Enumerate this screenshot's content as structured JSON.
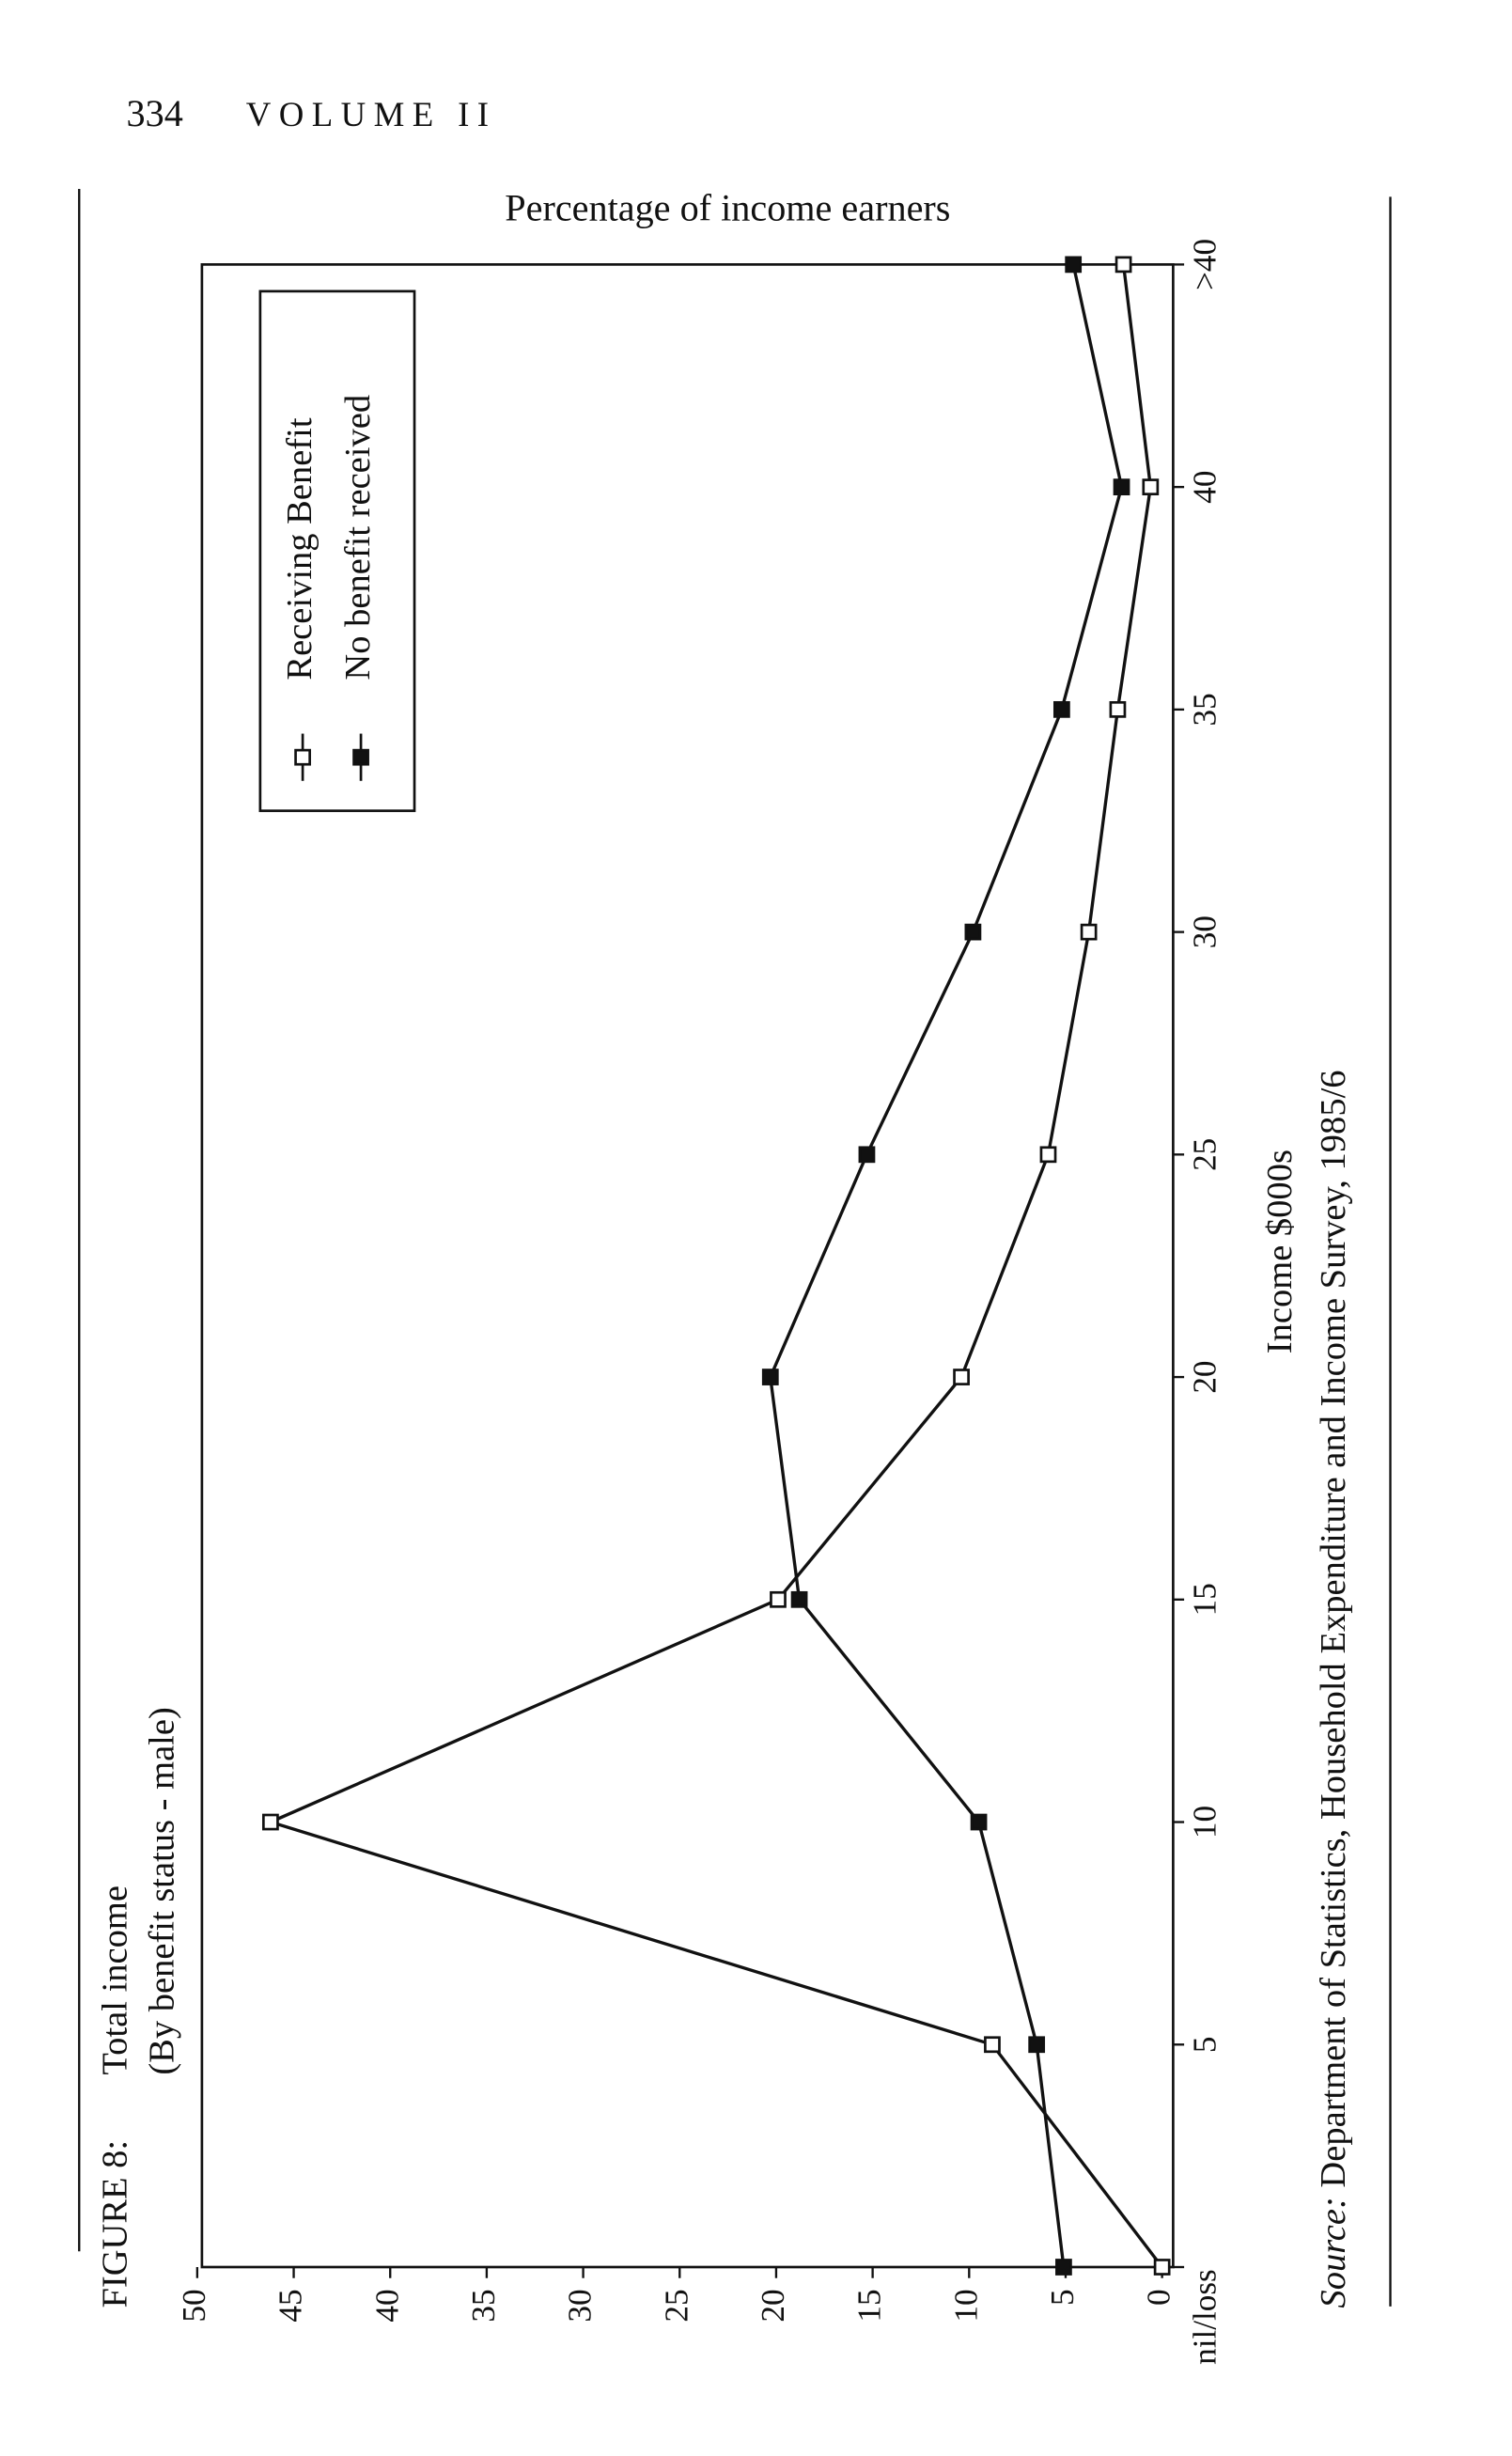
{
  "page": {
    "number": "334",
    "running_head": "VOLUME II"
  },
  "figure": {
    "label": "FIGURE 8:",
    "source_label": "Source:",
    "source_text": "Department of Statistics, Household Expenditure and Income Survey, 1985/6"
  },
  "chart_data": {
    "type": "line",
    "title": "Total income",
    "subtitle": "(By benefit status - male)",
    "y_label": "Percentage of income earners",
    "x_label": "Income $000s",
    "categories": [
      "nil/loss",
      "5",
      "10",
      "15",
      "20",
      "25",
      "30",
      "35",
      "40",
      ">40"
    ],
    "series": [
      {
        "name": "Receiving Benefit",
        "color": "#111111",
        "marker": "open-square",
        "values": [
          0,
          8.8,
          46.2,
          19.9,
          10.4,
          5.9,
          3.8,
          2.3,
          0.6,
          2.0
        ]
      },
      {
        "name": "No benefit received",
        "color": "#111111",
        "marker": "filled-square",
        "values": [
          5.1,
          6.5,
          9.5,
          18.8,
          20.3,
          15.3,
          9.8,
          5.2,
          2.1,
          4.6
        ]
      }
    ],
    "ylim": [
      0,
      50
    ],
    "yticks": [
      0,
      5,
      10,
      15,
      20,
      25,
      30,
      35,
      40,
      45,
      50
    ],
    "grid": false
  }
}
